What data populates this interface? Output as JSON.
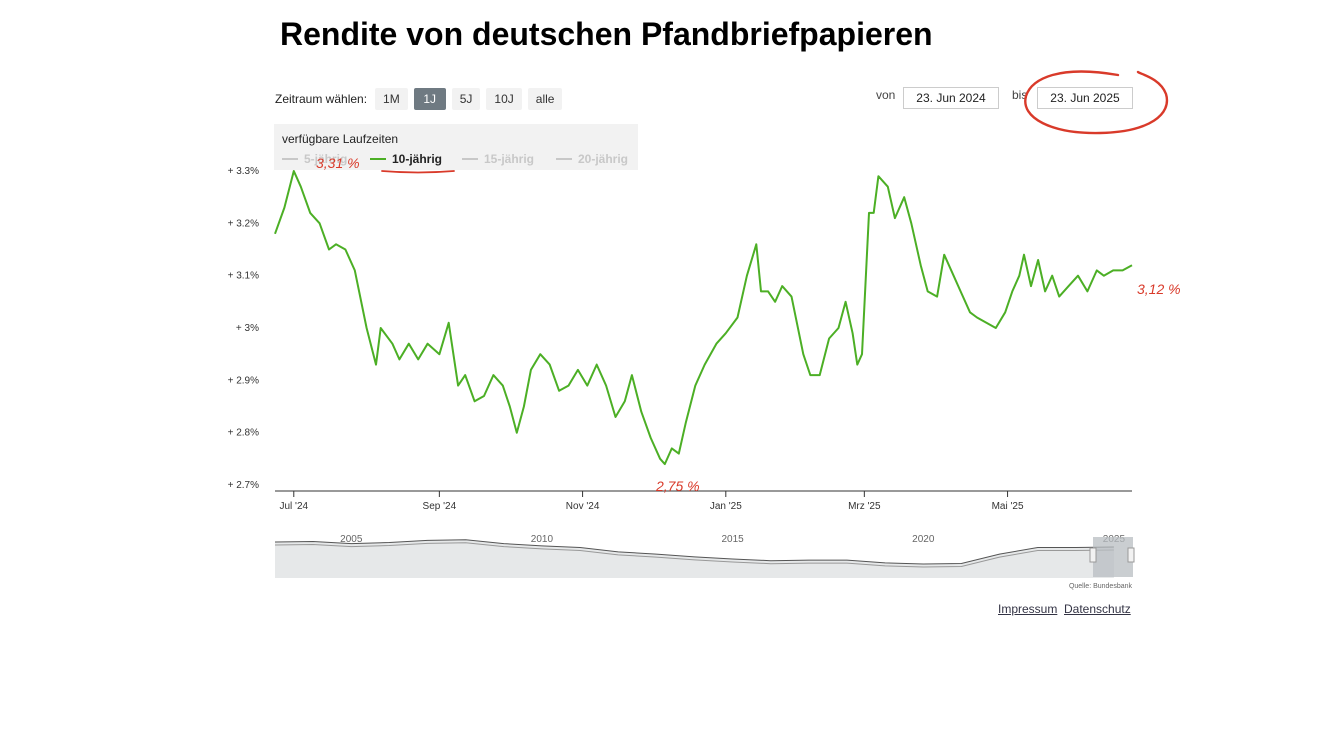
{
  "title": "Rendite von deutschen Pfandbriefpapieren",
  "zoom": {
    "label": "Zeitraum wählen:",
    "buttons": [
      "1M",
      "1J",
      "5J",
      "10J",
      "alle"
    ],
    "selected": "1J"
  },
  "range": {
    "from_label": "von",
    "from_value": "23. Jun 2024",
    "to_label": "bis",
    "to_value": "23. Jun 2025"
  },
  "legend": {
    "title": "verfügbare Laufzeiten",
    "items": [
      {
        "label": "5-jährig",
        "active": false
      },
      {
        "label": "10-jährig",
        "active": true
      },
      {
        "label": "15-jährig",
        "active": false
      },
      {
        "label": "20-jährig",
        "active": false
      }
    ]
  },
  "colors": {
    "series": "#4caf25",
    "annotation": "#d93a2a",
    "navigator_fill": "#e6e8e9",
    "selected_button": "#6f7a82"
  },
  "annotations": {
    "high": "3,31 %",
    "low": "2,75 %",
    "last": "3,12 %",
    "date_circle": true
  },
  "credit": "Quelle: Bundesbank",
  "footer": {
    "impressum": "Impressum",
    "datenschutz": "Datenschutz"
  },
  "chart_data": {
    "type": "line",
    "title": "Rendite von deutschen Pfandbriefpapieren",
    "xlabel": "",
    "ylabel": "",
    "ylim": [
      2.7,
      3.3
    ],
    "xlim": [
      "2024-06-23",
      "2025-06-23"
    ],
    "yticks": [
      2.7,
      2.8,
      2.9,
      3.0,
      3.1,
      3.2,
      3.3
    ],
    "ytick_labels": [
      "+ 2.7%",
      "+ 2.8%",
      "+ 2.9%",
      "+ 3%",
      "+ 3.1%",
      "+ 3.2%",
      "+ 3.3%"
    ],
    "xticks": [
      {
        "date": "2024-07-01",
        "label": "Jul '24"
      },
      {
        "date": "2024-09-01",
        "label": "Sep '24"
      },
      {
        "date": "2024-11-01",
        "label": "Nov '24"
      },
      {
        "date": "2025-01-01",
        "label": "Jan '25"
      },
      {
        "date": "2025-03-01",
        "label": "Mrz '25"
      },
      {
        "date": "2025-05-01",
        "label": "Mai '25"
      }
    ],
    "grid": false,
    "legend_position": "top-left",
    "series": [
      {
        "name": "10-jährig",
        "points": [
          [
            "2024-06-23",
            3.18
          ],
          [
            "2024-06-27",
            3.23
          ],
          [
            "2024-07-01",
            3.3
          ],
          [
            "2024-07-04",
            3.27
          ],
          [
            "2024-07-08",
            3.22
          ],
          [
            "2024-07-12",
            3.2
          ],
          [
            "2024-07-16",
            3.15
          ],
          [
            "2024-07-19",
            3.16
          ],
          [
            "2024-07-23",
            3.15
          ],
          [
            "2024-07-27",
            3.11
          ],
          [
            "2024-08-01",
            3.0
          ],
          [
            "2024-08-05",
            2.93
          ],
          [
            "2024-08-07",
            3.0
          ],
          [
            "2024-08-12",
            2.97
          ],
          [
            "2024-08-15",
            2.94
          ],
          [
            "2024-08-19",
            2.97
          ],
          [
            "2024-08-23",
            2.94
          ],
          [
            "2024-08-27",
            2.97
          ],
          [
            "2024-09-01",
            2.95
          ],
          [
            "2024-09-05",
            3.01
          ],
          [
            "2024-09-09",
            2.89
          ],
          [
            "2024-09-12",
            2.91
          ],
          [
            "2024-09-16",
            2.86
          ],
          [
            "2024-09-20",
            2.87
          ],
          [
            "2024-09-24",
            2.91
          ],
          [
            "2024-09-28",
            2.89
          ],
          [
            "2024-10-01",
            2.85
          ],
          [
            "2024-10-04",
            2.8
          ],
          [
            "2024-10-07",
            2.85
          ],
          [
            "2024-10-10",
            2.92
          ],
          [
            "2024-10-14",
            2.95
          ],
          [
            "2024-10-18",
            2.93
          ],
          [
            "2024-10-22",
            2.88
          ],
          [
            "2024-10-26",
            2.89
          ],
          [
            "2024-10-30",
            2.92
          ],
          [
            "2024-11-03",
            2.89
          ],
          [
            "2024-11-07",
            2.93
          ],
          [
            "2024-11-11",
            2.89
          ],
          [
            "2024-11-15",
            2.83
          ],
          [
            "2024-11-19",
            2.86
          ],
          [
            "2024-11-22",
            2.91
          ],
          [
            "2024-11-26",
            2.84
          ],
          [
            "2024-11-30",
            2.79
          ],
          [
            "2024-12-04",
            2.75
          ],
          [
            "2024-12-06",
            2.74
          ],
          [
            "2024-12-09",
            2.77
          ],
          [
            "2024-12-12",
            2.76
          ],
          [
            "2024-12-15",
            2.82
          ],
          [
            "2024-12-19",
            2.89
          ],
          [
            "2024-12-23",
            2.93
          ],
          [
            "2024-12-28",
            2.97
          ],
          [
            "2025-01-01",
            2.99
          ],
          [
            "2025-01-06",
            3.02
          ],
          [
            "2025-01-10",
            3.1
          ],
          [
            "2025-01-14",
            3.16
          ],
          [
            "2025-01-16",
            3.07
          ],
          [
            "2025-01-19",
            3.07
          ],
          [
            "2025-01-22",
            3.05
          ],
          [
            "2025-01-25",
            3.08
          ],
          [
            "2025-01-29",
            3.06
          ],
          [
            "2025-02-03",
            2.95
          ],
          [
            "2025-02-06",
            2.91
          ],
          [
            "2025-02-10",
            2.91
          ],
          [
            "2025-02-14",
            2.98
          ],
          [
            "2025-02-18",
            3.0
          ],
          [
            "2025-02-21",
            3.05
          ],
          [
            "2025-02-24",
            2.99
          ],
          [
            "2025-02-26",
            2.93
          ],
          [
            "2025-02-28",
            2.95
          ],
          [
            "2025-03-03",
            3.22
          ],
          [
            "2025-03-05",
            3.22
          ],
          [
            "2025-03-07",
            3.29
          ],
          [
            "2025-03-11",
            3.27
          ],
          [
            "2025-03-14",
            3.21
          ],
          [
            "2025-03-18",
            3.25
          ],
          [
            "2025-03-21",
            3.2
          ],
          [
            "2025-03-25",
            3.12
          ],
          [
            "2025-03-28",
            3.07
          ],
          [
            "2025-04-01",
            3.06
          ],
          [
            "2025-04-04",
            3.14
          ],
          [
            "2025-04-08",
            3.1
          ],
          [
            "2025-04-11",
            3.07
          ],
          [
            "2025-04-15",
            3.03
          ],
          [
            "2025-04-18",
            3.02
          ],
          [
            "2025-04-22",
            3.01
          ],
          [
            "2025-04-26",
            3.0
          ],
          [
            "2025-04-30",
            3.03
          ],
          [
            "2025-05-03",
            3.07
          ],
          [
            "2025-05-06",
            3.1
          ],
          [
            "2025-05-08",
            3.14
          ],
          [
            "2025-05-11",
            3.08
          ],
          [
            "2025-05-14",
            3.13
          ],
          [
            "2025-05-17",
            3.07
          ],
          [
            "2025-05-20",
            3.1
          ],
          [
            "2025-05-23",
            3.06
          ],
          [
            "2025-05-27",
            3.08
          ],
          [
            "2025-05-31",
            3.1
          ],
          [
            "2025-06-04",
            3.07
          ],
          [
            "2025-06-08",
            3.11
          ],
          [
            "2025-06-11",
            3.1
          ],
          [
            "2025-06-15",
            3.11
          ],
          [
            "2025-06-19",
            3.11
          ],
          [
            "2025-06-23",
            3.12
          ]
        ]
      }
    ]
  },
  "navigator_data": {
    "type": "line",
    "xticks": [
      "2005",
      "2010",
      "2015",
      "2020",
      "2025"
    ],
    "series": [
      {
        "name": "10-jährig",
        "points": [
          [
            2003.0,
            4.0
          ],
          [
            2004.0,
            4.1
          ],
          [
            2005.0,
            3.7
          ],
          [
            2006.0,
            3.9
          ],
          [
            2007.0,
            4.3
          ],
          [
            2008.0,
            4.4
          ],
          [
            2009.0,
            3.7
          ],
          [
            2010.0,
            3.3
          ],
          [
            2011.0,
            3.0
          ],
          [
            2012.0,
            2.2
          ],
          [
            2013.0,
            1.8
          ],
          [
            2014.0,
            1.3
          ],
          [
            2015.0,
            0.9
          ],
          [
            2016.0,
            0.6
          ],
          [
            2017.0,
            0.7
          ],
          [
            2018.0,
            0.7
          ],
          [
            2019.0,
            0.2
          ],
          [
            2020.0,
            0.0
          ],
          [
            2021.0,
            0.1
          ],
          [
            2022.0,
            1.8
          ],
          [
            2023.0,
            3.0
          ],
          [
            2024.0,
            3.0
          ],
          [
            2025.0,
            3.1
          ]
        ]
      }
    ]
  }
}
